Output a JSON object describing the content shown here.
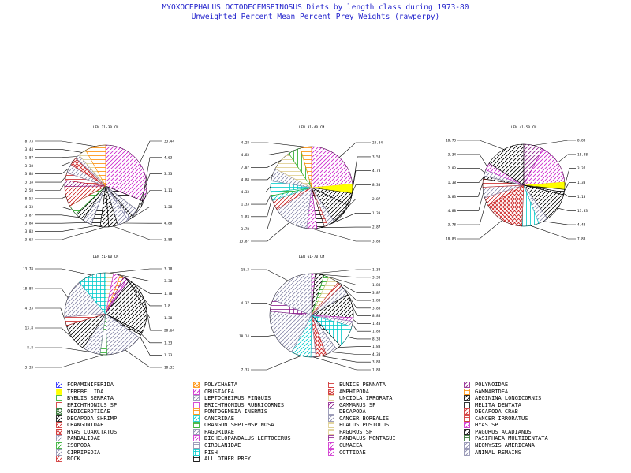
{
  "title_line1": "MYOXOCEPHALUS OCTODECEMSPINOSUS Diets by length class during 1973-80",
  "title_line2": "Unweighted Percent Mean Percent Prey  Weights (rawperpy)",
  "colors": {
    "title": "#2222cc",
    "line": "#000000"
  },
  "legend": [
    {
      "label": "FORAMINIFERIDA",
      "color": "#1a1aff",
      "pattern": "diag",
      "symbol": "foraminiferida-swatch"
    },
    {
      "label": "POLYCHAETA",
      "color": "#ff8c00",
      "pattern": "x",
      "symbol": "polychaeta-swatch"
    },
    {
      "label": "EUNICE PENNATA",
      "color": "#cc2222",
      "pattern": "hlines",
      "symbol": "eunice-pennata-swatch"
    },
    {
      "label": "POLYNOIDAE",
      "color": "#8a1a8a",
      "pattern": "diag",
      "symbol": "polynoidae-swatch"
    },
    {
      "label": "TEREBELLIDA",
      "color": "#ffff00",
      "pattern": "solid",
      "symbol": "terebellida-swatch"
    },
    {
      "label": "CRUSTACEA",
      "color": "#cc22cc",
      "pattern": "diag",
      "symbol": "crustacea-swatch"
    },
    {
      "label": "AMPHIPODA",
      "color": "#cc2222",
      "pattern": "x",
      "symbol": "amphipoda-swatch"
    },
    {
      "label": "GAMMARIDEA",
      "color": "#ff8c00",
      "pattern": "hlines",
      "symbol": "gammaridea-swatch"
    },
    {
      "label": "BYBLIS SERRATA",
      "color": "#22aa22",
      "pattern": "vlines",
      "symbol": "byblis-serrata-swatch"
    },
    {
      "label": "LEPTOCHEIRUS PINGUIS",
      "color": "#8888aa",
      "pattern": "diag",
      "symbol": "leptocheirus-pinguis-swatch"
    },
    {
      "label": "UNCIOLA IRRORATA",
      "color": "#ddcc88",
      "pattern": "hlines",
      "symbol": "unciola-irrorata-swatch"
    },
    {
      "label": "AEGININA LONGICORNIS",
      "color": "#000000",
      "pattern": "diag",
      "symbol": "aeginina-longicornis-swatch"
    },
    {
      "label": "ERICHTHONIUS SP",
      "color": "#cc2222",
      "pattern": "grid",
      "symbol": "erichthonius-sp-swatch"
    },
    {
      "label": "ERICHTHONIUS RUBRICORNIS",
      "color": "#cc22cc",
      "pattern": "hlines",
      "symbol": "erichthonius-rubricornis-swatch"
    },
    {
      "label": "GAMMARUS SP",
      "color": "#8a1a8a",
      "pattern": "diag",
      "symbol": "gammarus-sp-swatch"
    },
    {
      "label": "MELITA DENTATA",
      "color": "#000000",
      "pattern": "hlines",
      "symbol": "melita-dentata-swatch"
    },
    {
      "label": "OEDICEROTIDAE",
      "color": "#226622",
      "pattern": "x",
      "symbol": "oedicerotidae-swatch"
    },
    {
      "label": "PONTOGENEIA INERMIS",
      "color": "#ff8c00",
      "pattern": "hlines",
      "symbol": "pontogeneia-inermis-swatch"
    },
    {
      "label": "DECAPODA",
      "color": "#8888aa",
      "pattern": "vlines",
      "symbol": "decapoda-swatch"
    },
    {
      "label": "DECAPODA CRAB",
      "color": "#cc2222",
      "pattern": "diag",
      "symbol": "decapoda-crab-swatch"
    },
    {
      "label": "DECAPODA SHRIMP",
      "color": "#000000",
      "pattern": "diag",
      "symbol": "decapoda-shrimp-swatch"
    },
    {
      "label": "CANCRIDAE",
      "color": "#00cccc",
      "pattern": "diag",
      "symbol": "cancridae-swatch"
    },
    {
      "label": "CANCER BOREALIS",
      "color": "#8888aa",
      "pattern": "diag",
      "symbol": "cancer-borealis-swatch"
    },
    {
      "label": "CANCER IRRORATUS",
      "color": "#cc2222",
      "pattern": "hlines",
      "symbol": "cancer-irroratus-swatch"
    },
    {
      "label": "CRANGONIDAE",
      "color": "#cc2222",
      "pattern": "diag",
      "symbol": "crangonidae-swatch"
    },
    {
      "label": "CRANGON SEPTEMSPINOSA",
      "color": "#22aa22",
      "pattern": "hlines",
      "symbol": "crangon-septemspinosa-swatch"
    },
    {
      "label": "EUALUS PUSIOLUS",
      "color": "#ddcc88",
      "pattern": "hlines",
      "symbol": "eualus-pusiolus-swatch"
    },
    {
      "label": "HYAS SP",
      "color": "#cc22cc",
      "pattern": "diag",
      "symbol": "hyas-sp-swatch"
    },
    {
      "label": "HYAS COARCTATUS",
      "color": "#cc2222",
      "pattern": "x",
      "symbol": "hyas-coarctatus-swatch"
    },
    {
      "label": "PAGURIDAE",
      "color": "#8888aa",
      "pattern": "diag",
      "symbol": "paguridae-swatch"
    },
    {
      "label": "PAGURUS SP",
      "color": "#ddcc88",
      "pattern": "hlines",
      "symbol": "pagurus-sp-swatch"
    },
    {
      "label": "PAGURUS ACADIANUS",
      "color": "#000000",
      "pattern": "diag",
      "symbol": "pagurus-acadianus-swatch"
    },
    {
      "label": "PANDALIDAE",
      "color": "#8888aa",
      "pattern": "diag",
      "symbol": "pandalidae-swatch"
    },
    {
      "label": "DICHELOPANDALUS LEPTOCERUS",
      "color": "#cc22cc",
      "pattern": "diag",
      "symbol": "dichelopandalus-leptocerus-swatch"
    },
    {
      "label": "PANDALUS MONTAGUI",
      "color": "#8a1a8a",
      "pattern": "grid",
      "symbol": "pandalus-montagui-swatch"
    },
    {
      "label": "PASIPHAEA MULTIDENTATA",
      "color": "#226622",
      "pattern": "hlines",
      "symbol": "pasiphaea-multidentata-swatch"
    },
    {
      "label": "ISOPODA",
      "color": "#22aa22",
      "pattern": "diag",
      "symbol": "isopoda-swatch"
    },
    {
      "label": "CIROLANIDAE",
      "color": "#8888aa",
      "pattern": "hlines",
      "symbol": "cirolanidae-swatch"
    },
    {
      "label": "CUMACEA",
      "color": "#cc22cc",
      "pattern": "diag",
      "symbol": "cumacea-swatch"
    },
    {
      "label": "NEOMYSIS AMERICANA",
      "color": "#8888aa",
      "pattern": "diag",
      "symbol": "neomysis-americana-swatch"
    },
    {
      "label": "CIRRIPEDIA",
      "color": "#8888aa",
      "pattern": "diag",
      "symbol": "cirripedia-swatch"
    },
    {
      "label": "FISH",
      "color": "#00cccc",
      "pattern": "grid",
      "symbol": "fish-swatch"
    },
    {
      "label": "COTTIDAE",
      "color": "#cc22cc",
      "pattern": "diag",
      "symbol": "cottidae-swatch"
    },
    {
      "label": "ANIMAL REMAINS",
      "color": "#8888aa",
      "pattern": "diag",
      "symbol": "animal-remains-swatch"
    },
    {
      "label": "ROCK",
      "color": "#cc2222",
      "pattern": "diag",
      "symbol": "rock-swatch"
    },
    {
      "label": "ALL OTHER PREY",
      "color": "#000000",
      "pattern": "hlines",
      "symbol": "all-other-prey-swatch"
    }
  ],
  "chart_data": [
    {
      "type": "pie",
      "title": "LEN 21-30 CM",
      "slices": [
        {
          "label": "33.44",
          "value": 33.44,
          "color": "#cc22cc",
          "pattern": "diag"
        },
        {
          "label": "4.63",
          "value": 4.63,
          "color": "#000000",
          "pattern": "hlines"
        },
        {
          "label": "3.33",
          "value": 3.33,
          "color": "#8888aa",
          "pattern": "diag"
        },
        {
          "label": "1.11",
          "value": 1.11,
          "color": "#000000",
          "pattern": "diag"
        },
        {
          "label": "1.28",
          "value": 1.28,
          "color": "#8888aa",
          "pattern": "vlines"
        },
        {
          "label": "4.88",
          "value": 4.88,
          "color": "#8888aa",
          "pattern": "diag"
        },
        {
          "label": "3.88",
          "value": 3.88,
          "color": "#000000",
          "pattern": "diag"
        },
        {
          "label": "3.63",
          "value": 3.63,
          "color": "#000000",
          "pattern": "diag"
        },
        {
          "label": "3.83",
          "value": 3.83,
          "color": "#000000",
          "pattern": "hlines"
        },
        {
          "label": "3.88",
          "value": 3.88,
          "color": "#8888aa",
          "pattern": "diag"
        },
        {
          "label": "3.87",
          "value": 3.87,
          "color": "#000000",
          "pattern": "diag"
        },
        {
          "label": "4.33",
          "value": 4.33,
          "color": "#22aa22",
          "pattern": "hlines"
        },
        {
          "label": "8.53",
          "value": 8.53,
          "color": "#cc2222",
          "pattern": "diag"
        },
        {
          "label": "2.58",
          "value": 2.58,
          "color": "#8a1a8a",
          "pattern": "diag"
        },
        {
          "label": "3.18",
          "value": 3.18,
          "color": "#cc2222",
          "pattern": "hlines"
        },
        {
          "label": "3.88",
          "value": 3.88,
          "color": "#8888aa",
          "pattern": "diag"
        },
        {
          "label": "3.38",
          "value": 3.38,
          "color": "#cc2222",
          "pattern": "x"
        },
        {
          "label": "1.87",
          "value": 1.87,
          "color": "#8888aa",
          "pattern": "diag"
        },
        {
          "label": "3.44",
          "value": 3.44,
          "color": "#ddcc88",
          "pattern": "hlines"
        },
        {
          "label": "8.73",
          "value": 8.73,
          "color": "#ff8c00",
          "pattern": "hlines"
        }
      ]
    },
    {
      "type": "pie",
      "title": "LEN 31-40 CM",
      "slices": [
        {
          "label": "23.04",
          "value": 23.04,
          "color": "#cc22cc",
          "pattern": "diag"
        },
        {
          "label": "3.53",
          "value": 3.53,
          "color": "#ffff00",
          "pattern": "solid"
        },
        {
          "label": "4.78",
          "value": 4.78,
          "color": "#000000",
          "pattern": "diag"
        },
        {
          "label": "8.33",
          "value": 8.33,
          "color": "#000000",
          "pattern": "diag"
        },
        {
          "label": "2.87",
          "value": 2.87,
          "color": "#8888aa",
          "pattern": "diag"
        },
        {
          "label": "1.33",
          "value": 1.33,
          "color": "#cc2222",
          "pattern": "hlines"
        },
        {
          "label": "2.87",
          "value": 2.87,
          "color": "#000000",
          "pattern": "hlines"
        },
        {
          "label": "3.88",
          "value": 3.88,
          "color": "#cc22cc",
          "pattern": "diag"
        },
        {
          "label": "13.87",
          "value": 13.87,
          "color": "#8888aa",
          "pattern": "diag"
        },
        {
          "label": "3.78",
          "value": 3.78,
          "color": "#cc2222",
          "pattern": "diag"
        },
        {
          "label": "1.83",
          "value": 1.83,
          "color": "#00cccc",
          "pattern": "diag"
        },
        {
          "label": "1.33",
          "value": 1.33,
          "color": "#22aa22",
          "pattern": "hlines"
        },
        {
          "label": "4.33",
          "value": 4.33,
          "color": "#00cccc",
          "pattern": "grid"
        },
        {
          "label": "4.88",
          "value": 4.88,
          "color": "#8888aa",
          "pattern": "diag"
        },
        {
          "label": "7.87",
          "value": 7.87,
          "color": "#ddcc88",
          "pattern": "hlines"
        },
        {
          "label": "4.83",
          "value": 4.83,
          "color": "#22aa22",
          "pattern": "vlines"
        },
        {
          "label": "4.28",
          "value": 4.28,
          "color": "#ff8c00",
          "pattern": "hlines"
        }
      ]
    },
    {
      "type": "pie",
      "title": "LEN 41-50 CM",
      "slices": [
        {
          "label": "8.88",
          "value": 8.88,
          "color": "#8a1a8a",
          "pattern": "diag"
        },
        {
          "label": "18.88",
          "value": 18.88,
          "color": "#cc22cc",
          "pattern": "diag"
        },
        {
          "label": "3.37",
          "value": 3.37,
          "color": "#ffff00",
          "pattern": "solid"
        },
        {
          "label": "1.33",
          "value": 1.33,
          "color": "#000000",
          "pattern": "hlines"
        },
        {
          "label": "1.13",
          "value": 1.13,
          "color": "#000000",
          "pattern": "diag"
        },
        {
          "label": "13.33",
          "value": 13.33,
          "color": "#000000",
          "pattern": "diag"
        },
        {
          "label": "4.48",
          "value": 4.48,
          "color": "#8888aa",
          "pattern": "diag"
        },
        {
          "label": "7.88",
          "value": 7.88,
          "color": "#00cccc",
          "pattern": "vlines"
        },
        {
          "label": "18.83",
          "value": 18.83,
          "color": "#cc2222",
          "pattern": "x"
        },
        {
          "label": "3.78",
          "value": 3.78,
          "color": "#cc2222",
          "pattern": "diag"
        },
        {
          "label": "4.88",
          "value": 4.88,
          "color": "#8888aa",
          "pattern": "diag"
        },
        {
          "label": "3.83",
          "value": 3.83,
          "color": "#cc2222",
          "pattern": "hlines"
        },
        {
          "label": "1.38",
          "value": 1.38,
          "color": "#000000",
          "pattern": "diag"
        },
        {
          "label": "2.83",
          "value": 2.83,
          "color": "#8888aa",
          "pattern": "diag"
        },
        {
          "label": "3.34",
          "value": 3.34,
          "color": "#cc22cc",
          "pattern": "diag"
        },
        {
          "label": "18.73",
          "value": 18.73,
          "color": "#000000",
          "pattern": "diag"
        }
      ]
    },
    {
      "type": "pie",
      "title": "LEN 51-60 CM",
      "slices": [
        {
          "label": "3.78",
          "value": 3.78,
          "color": "#ddcc88",
          "pattern": "hlines"
        },
        {
          "label": "3.38",
          "value": 3.38,
          "color": "#cc22cc",
          "pattern": "diag"
        },
        {
          "label": "1.78",
          "value": 1.78,
          "color": "#ff8c00",
          "pattern": "hlines"
        },
        {
          "label": "1.8",
          "value": 1.8,
          "color": "#8a1a8a",
          "pattern": "diag"
        },
        {
          "label": "1.38",
          "value": 1.38,
          "color": "#cc22cc",
          "pattern": "diag"
        },
        {
          "label": "28.64",
          "value": 28.64,
          "color": "#000000",
          "pattern": "diag"
        },
        {
          "label": "1.33",
          "value": 1.33,
          "color": "#000000",
          "pattern": "diag"
        },
        {
          "label": "1.33",
          "value": 1.33,
          "color": "#000000",
          "pattern": "hlines"
        },
        {
          "label": "18.33",
          "value": 18.33,
          "color": "#8888aa",
          "pattern": "diag"
        },
        {
          "label": "3.33",
          "value": 3.33,
          "color": "#22aa22",
          "pattern": "hlines"
        },
        {
          "label": "8.8",
          "value": 8.8,
          "color": "#8888aa",
          "pattern": "diag"
        },
        {
          "label": "13.8",
          "value": 13.8,
          "color": "#000000",
          "pattern": "diag"
        },
        {
          "label": "4.33",
          "value": 4.33,
          "color": "#cc2222",
          "pattern": "hlines"
        },
        {
          "label": "18.88",
          "value": 18.88,
          "color": "#8888aa",
          "pattern": "diag"
        },
        {
          "label": "13.78",
          "value": 13.78,
          "color": "#00cccc",
          "pattern": "grid"
        }
      ]
    },
    {
      "type": "pie",
      "title": "LEN 61-70 CM",
      "slices": [
        {
          "label": "1.33",
          "value": 1.33,
          "color": "#cc22cc",
          "pattern": "diag"
        },
        {
          "label": "3.33",
          "value": 3.33,
          "color": "#000000",
          "pattern": "diag"
        },
        {
          "label": "1.88",
          "value": 1.88,
          "color": "#22aa22",
          "pattern": "hlines"
        },
        {
          "label": "3.87",
          "value": 3.87,
          "color": "#ddcc88",
          "pattern": "hlines"
        },
        {
          "label": "1.88",
          "value": 1.88,
          "color": "#cc2222",
          "pattern": "diag"
        },
        {
          "label": "3.88",
          "value": 3.88,
          "color": "#8888aa",
          "pattern": "diag"
        },
        {
          "label": "8.88",
          "value": 8.88,
          "color": "#000000",
          "pattern": "diag"
        },
        {
          "label": "1.43",
          "value": 1.43,
          "color": "#cc22cc",
          "pattern": "diag"
        },
        {
          "label": "1.88",
          "value": 1.88,
          "color": "#8888aa",
          "pattern": "diag"
        },
        {
          "label": "8.33",
          "value": 8.33,
          "color": "#00cccc",
          "pattern": "grid"
        },
        {
          "label": "1.88",
          "value": 1.88,
          "color": "#000000",
          "pattern": "hlines"
        },
        {
          "label": "4.33",
          "value": 4.33,
          "color": "#8888aa",
          "pattern": "diag"
        },
        {
          "label": "3.88",
          "value": 3.88,
          "color": "#cc2222",
          "pattern": "x"
        },
        {
          "label": "1.88",
          "value": 1.88,
          "color": "#8888aa",
          "pattern": "hlines"
        },
        {
          "label": "7.33",
          "value": 7.33,
          "color": "#00cccc",
          "pattern": "diag"
        },
        {
          "label": "18.14",
          "value": 18.14,
          "color": "#8888aa",
          "pattern": "diag"
        },
        {
          "label": "4.37",
          "value": 4.37,
          "color": "#8a1a8a",
          "pattern": "grid"
        },
        {
          "label": "18.3",
          "value": 18.3,
          "color": "#8888aa",
          "pattern": "diag"
        }
      ]
    }
  ]
}
